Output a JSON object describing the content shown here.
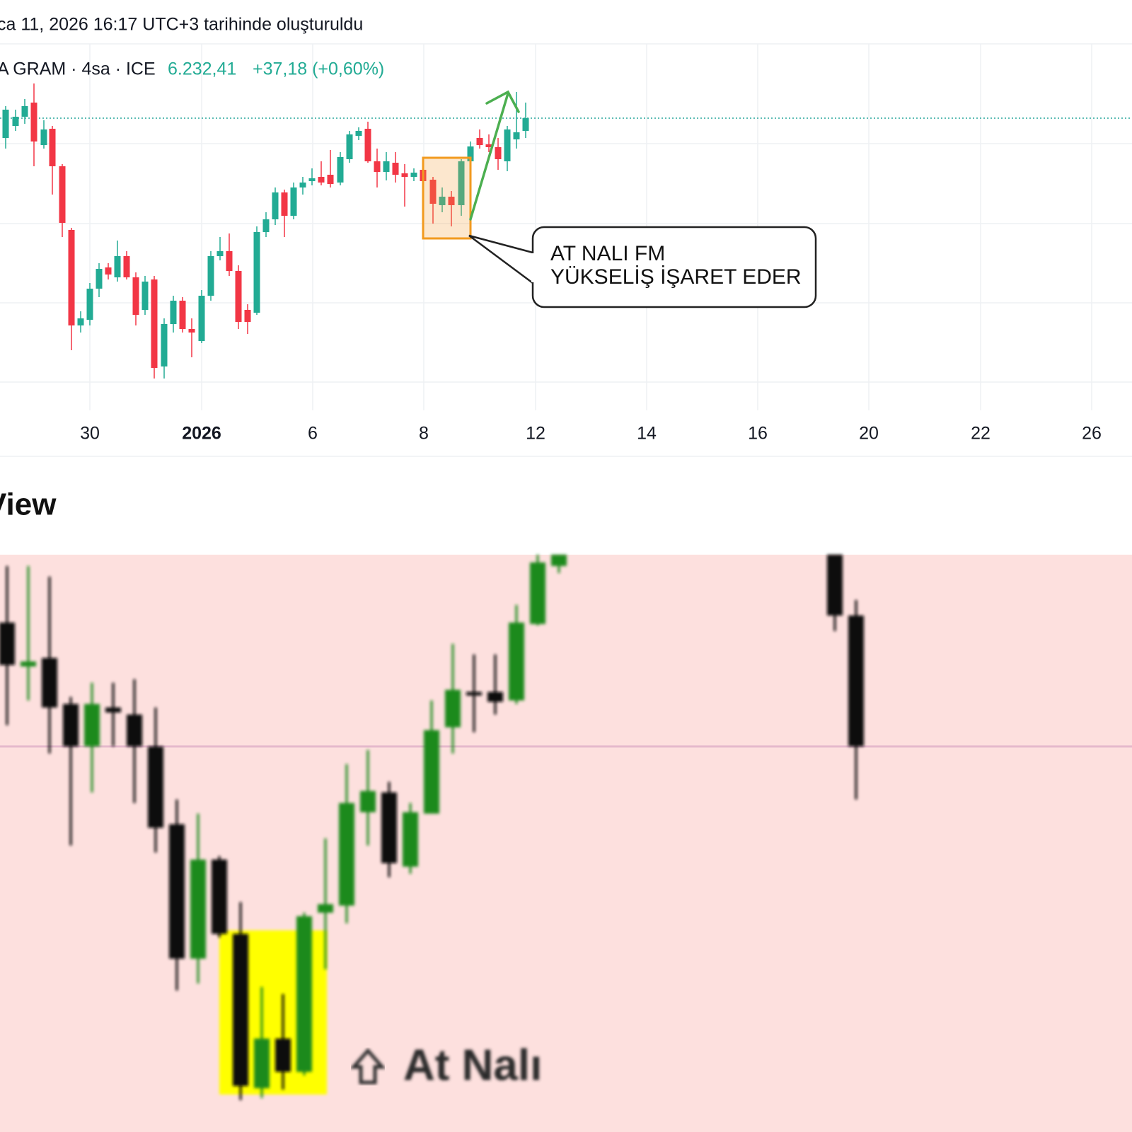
{
  "header": {
    "timestamp": "ca 11, 2026 16:17 UTC+3 tarihinde oluşturuldu"
  },
  "chart": {
    "symbol": "A GRAM · 4sa · ICE",
    "price": "6.232,41",
    "change": "+37,18 (+0,60%)",
    "x_labels": [
      "30",
      "2026",
      "6",
      "8",
      "12",
      "14",
      "16",
      "20",
      "22",
      "26"
    ],
    "annotation": [
      "AT NALI FM",
      "YÜKSELİŞ İŞARET EDER"
    ]
  },
  "section": {
    "title": "View"
  },
  "image": {
    "label": "At Nalı"
  }
}
